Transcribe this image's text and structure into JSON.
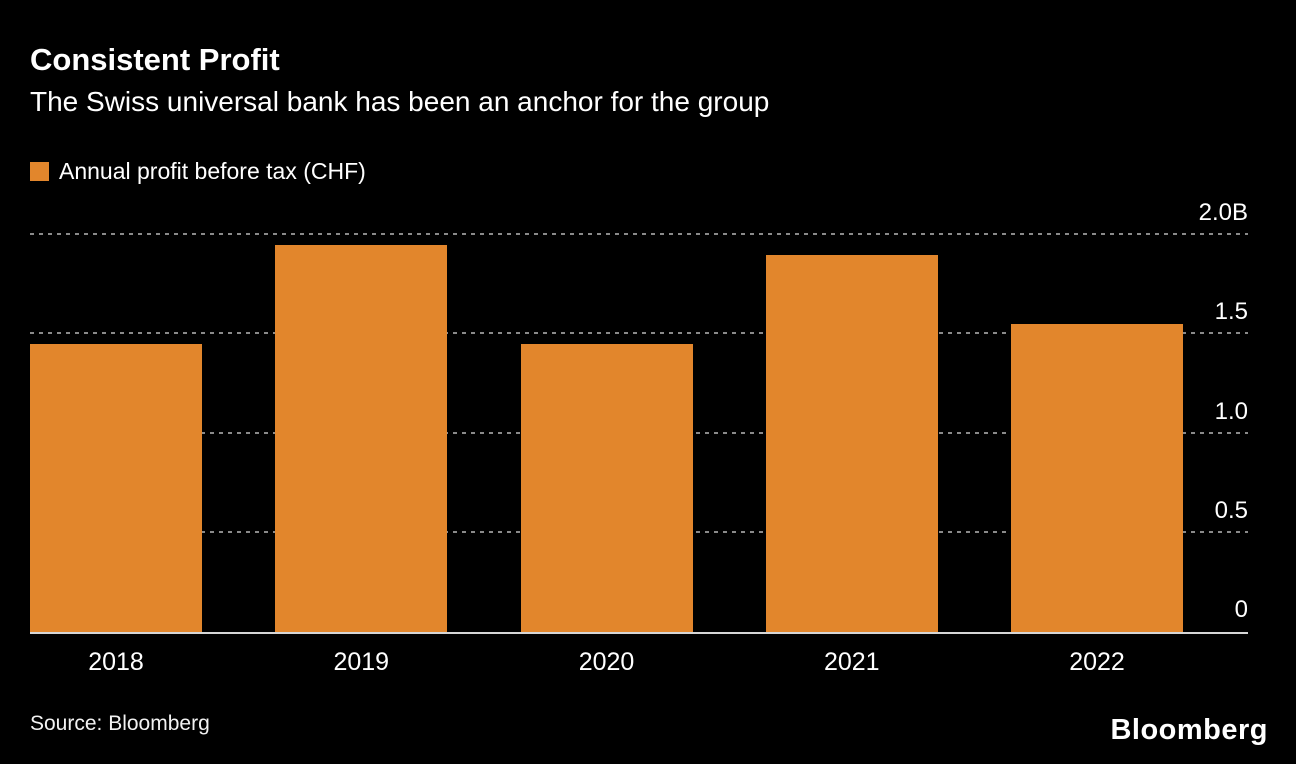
{
  "header": {
    "title": "Consistent Profit",
    "subtitle": "The Swiss universal bank has been an anchor for the group"
  },
  "legend": {
    "label": "Annual profit before tax (CHF)",
    "swatch_color": "#E2862C"
  },
  "chart_data": {
    "type": "bar",
    "categories": [
      "2018",
      "2019",
      "2020",
      "2021",
      "2022"
    ],
    "values": [
      1.45,
      1.95,
      1.45,
      1.9,
      1.55
    ],
    "title": "Consistent Profit",
    "subtitle": "The Swiss universal bank has been an anchor for the group",
    "series_label": "Annual profit before tax (CHF)",
    "xlabel": "",
    "ylabel": "",
    "ylim": [
      0,
      2.0
    ],
    "yticks": [
      {
        "value": 0,
        "label": "0"
      },
      {
        "value": 0.5,
        "label": "0.5"
      },
      {
        "value": 1.0,
        "label": "1.0"
      },
      {
        "value": 1.5,
        "label": "1.5"
      },
      {
        "value": 2.0,
        "label": "2.0B"
      }
    ],
    "bar_color": "#E2862C",
    "grid": "horizontal-dotted",
    "legend_position": "top-left",
    "background": "#000000"
  },
  "footer": {
    "source": "Source: Bloomberg",
    "brand": "Bloomberg"
  }
}
